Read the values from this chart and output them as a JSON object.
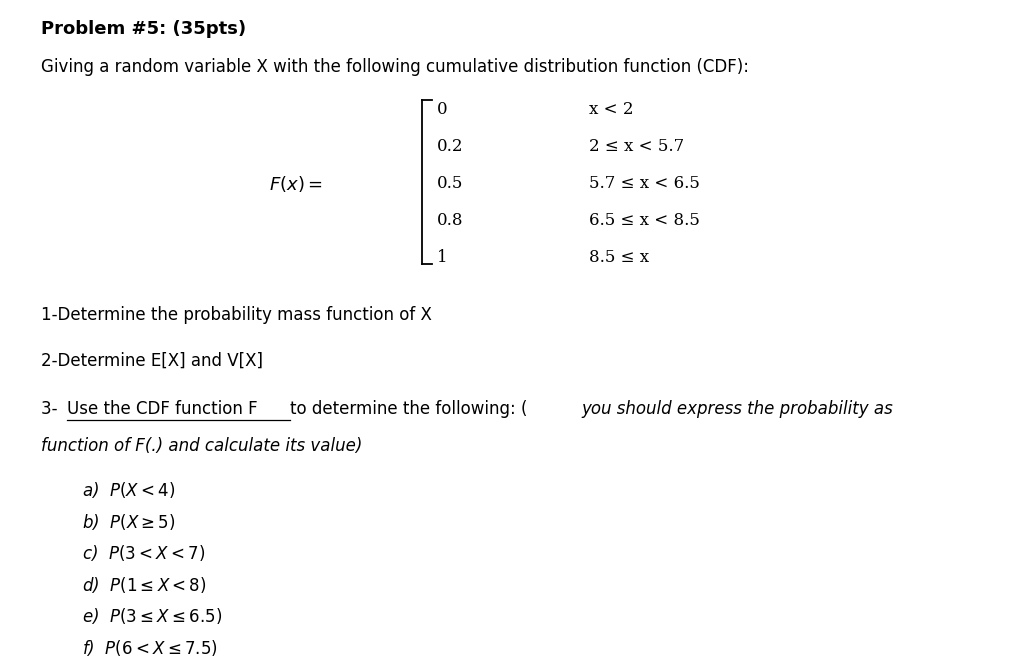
{
  "background_color": "#ffffff",
  "title_bold": "Problem #5: (35pts)",
  "subtitle": "Giving a random variable X with the following cumulative distribution function (CDF):",
  "cdf_values": [
    "0",
    "0.2",
    "0.5",
    "0.8",
    "1"
  ],
  "cdf_conditions": [
    "x < 2",
    "2 ≤ x < 5.7",
    "5.7 ≤ x < 6.5",
    "6.5 ≤ x < 8.5",
    "8.5 ≤ x"
  ],
  "q1": "1-Determine the probability mass function of X",
  "q2": "2-Determine E[X] and V[X]",
  "q3_prefix": "3- ",
  "q3_underline": "Use the CDF function F ",
  "q3_middle": "to determine the following: (",
  "q3_italic1": "you should express the probability as",
  "q3_line2": "function of F(.) and calculate its value)",
  "parts": [
    "a)  $P(X < 4)$",
    "b)  $P(X \\geq 5)$",
    "c)  $P(3 < X < 7)$",
    "d)  $P(1 \\leq X < 8)$",
    "e)  $P(3 \\leq X \\leq 6.5)$",
    "f)  $P(6 < X \\leq 7.5)$"
  ],
  "fig_width": 10.24,
  "fig_height": 6.57,
  "dpi": 100
}
